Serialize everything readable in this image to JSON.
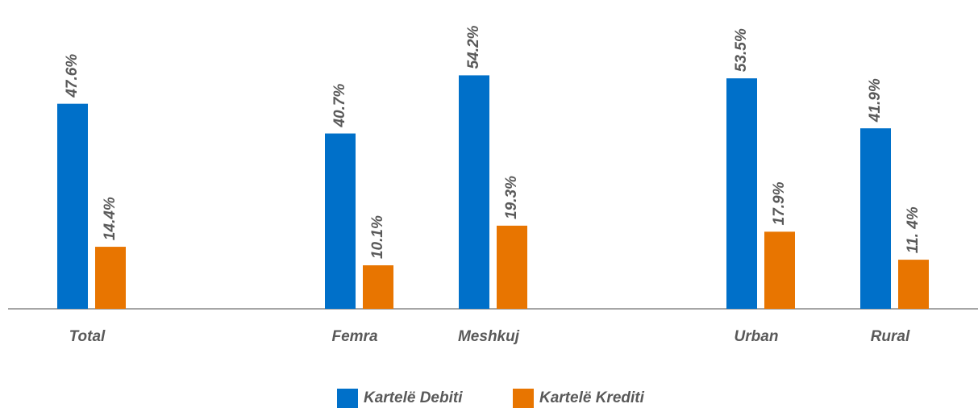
{
  "chart_data": {
    "type": "bar",
    "categories": [
      "Total",
      null,
      "Femra",
      "Meshkuj",
      null,
      "Urban",
      "Rural"
    ],
    "series": [
      {
        "name": "Kartelë Debiti",
        "color": "#0070c9",
        "values": [
          47.6,
          null,
          40.7,
          54.2,
          null,
          53.5,
          41.9
        ],
        "value_labels": [
          "47.6%",
          null,
          "40.7%",
          "54.2%",
          null,
          "53.5%",
          "41.9%"
        ]
      },
      {
        "name": "Kartelë Krediti",
        "color": "#e87500",
        "values": [
          14.4,
          null,
          10.1,
          19.3,
          null,
          17.9,
          11.4
        ],
        "value_labels": [
          "14.4%",
          null,
          "10.1%",
          "19.3%",
          null,
          "17.9%",
          "11. 4%"
        ]
      }
    ],
    "ylim": [
      0,
      70
    ],
    "grid": false,
    "legend": "bottom"
  }
}
